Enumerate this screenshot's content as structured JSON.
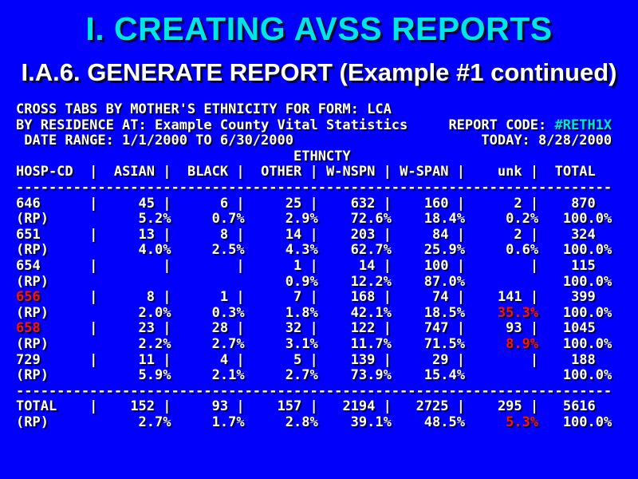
{
  "slide": {
    "title": "I. CREATING AVSS REPORTS",
    "subtitle": "I.A.6. GENERATE REPORT (Example #1 continued)"
  },
  "colors": {
    "background": "#0000fb",
    "title_cyan": "#00e6e6",
    "body_white": "#ffffff",
    "highlight_red": "#ff1200",
    "text_shadow": "#000533"
  },
  "report": {
    "header_lines": [
      [
        {
          "t": "CROSS TABS BY MOTHER'S ETHNICITY FOR FORM: LCA"
        }
      ],
      [
        {
          "t": "BY RESIDENCE AT: Example County Vital Statistics     REPORT CODE: "
        },
        {
          "t": "#RETH1X",
          "c": "cyan"
        }
      ],
      [
        {
          "t": " DATE RANGE: 1/1/2000 TO 6/30/2000                       TODAY: 8/28/2000"
        }
      ]
    ],
    "table": {
      "group_label": "ETHNCTY",
      "pct_label": "(RP)",
      "columns": [
        "HOSP-CD",
        "ASIAN",
        "BLACK",
        "OTHER",
        "W-NSPN",
        "W-SPAN",
        "unk",
        "TOTAL"
      ],
      "rows": [
        {
          "code": "646",
          "red_code": false,
          "counts": [
            "45",
            "6",
            "25",
            "632",
            "160",
            "2",
            "870"
          ],
          "pcts": [
            "5.2%",
            "0.7%",
            "2.9%",
            "72.6%",
            "18.4%",
            "0.2%",
            "100.0%"
          ],
          "red_pcts": []
        },
        {
          "code": "651",
          "red_code": false,
          "counts": [
            "13",
            "8",
            "14",
            "203",
            "84",
            "2",
            "324"
          ],
          "pcts": [
            "4.0%",
            "2.5%",
            "4.3%",
            "62.7%",
            "25.9%",
            "0.6%",
            "100.0%"
          ],
          "red_pcts": []
        },
        {
          "code": "654",
          "red_code": false,
          "counts": [
            "",
            "",
            "1",
            "14",
            "100",
            "",
            "115"
          ],
          "pcts": [
            "",
            "",
            "0.9%",
            "12.2%",
            "87.0%",
            "",
            "100.0%"
          ],
          "red_pcts": []
        },
        {
          "code": "656",
          "red_code": true,
          "counts": [
            "8",
            "1",
            "7",
            "168",
            "74",
            "141",
            "399"
          ],
          "pcts": [
            "2.0%",
            "0.3%",
            "1.8%",
            "42.1%",
            "18.5%",
            "35.3%",
            "100.0%"
          ],
          "red_pcts": [
            5
          ]
        },
        {
          "code": "658",
          "red_code": true,
          "counts": [
            "23",
            "28",
            "32",
            "122",
            "747",
            "93",
            "1045"
          ],
          "pcts": [
            "2.2%",
            "2.7%",
            "3.1%",
            "11.7%",
            "71.5%",
            "8.9%",
            "100.0%"
          ],
          "red_pcts": [
            5
          ]
        },
        {
          "code": "729",
          "red_code": false,
          "counts": [
            "11",
            "4",
            "5",
            "139",
            "29",
            "",
            "188"
          ],
          "pcts": [
            "5.9%",
            "2.1%",
            "2.7%",
            "73.9%",
            "15.4%",
            "",
            "100.0%"
          ],
          "red_pcts": []
        }
      ],
      "total": {
        "code": "TOTAL",
        "red_code": false,
        "counts": [
          "152",
          "93",
          "157",
          "2194",
          "2725",
          "295",
          "5616"
        ],
        "pcts": [
          "2.7%",
          "1.7%",
          "2.8%",
          "39.1%",
          "48.5%",
          "5.3%",
          "100.0%"
        ],
        "red_pcts": [
          5
        ]
      }
    }
  }
}
